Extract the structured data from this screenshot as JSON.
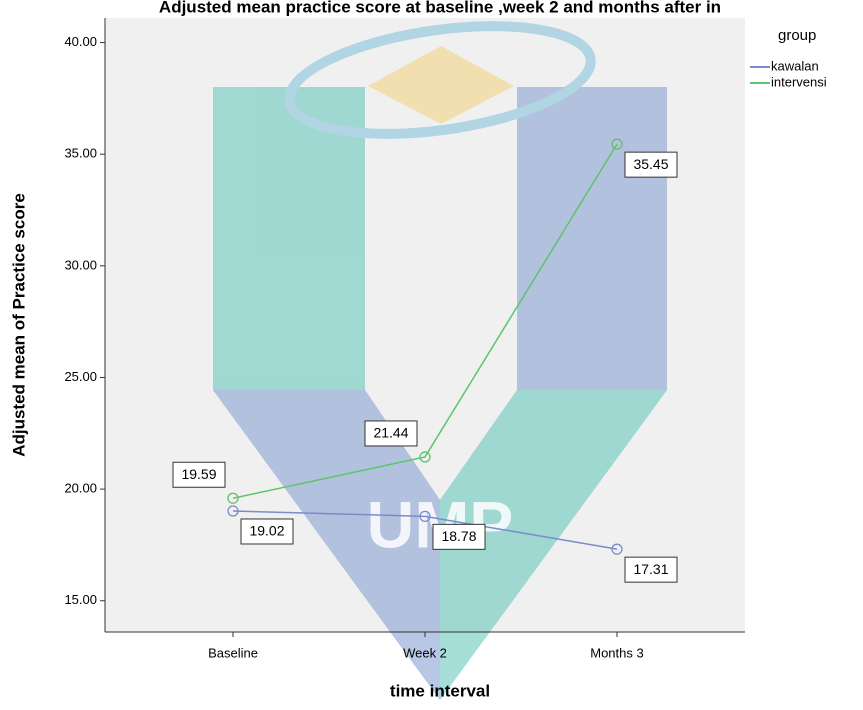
{
  "chart_data": {
    "type": "line",
    "title": "Adjusted  mean practice  score at baseline ,week 2 and months  after in",
    "x_label": "time interval",
    "y_label": "Adjusted mean of  Practice score",
    "legend_title": "group",
    "watermark": "UMP",
    "categories": [
      "Baseline",
      "Week 2",
      "Months 3"
    ],
    "series": [
      {
        "name": "kawalan",
        "color": "#7a8bcc",
        "values": [
          19.02,
          18.78,
          17.31
        ]
      },
      {
        "name": "intervensi",
        "color": "#5cc46a",
        "values": [
          19.59,
          21.44,
          35.45
        ]
      }
    ],
    "ylim": [
      13.6,
      41.1
    ],
    "yticks": [
      {
        "value": 15,
        "label": "15.00"
      },
      {
        "value": 20,
        "label": "20.00"
      },
      {
        "value": 25,
        "label": "25.00"
      },
      {
        "value": 30,
        "label": "30.00"
      },
      {
        "value": 35,
        "label": "35.00"
      },
      {
        "value": 40,
        "label": "40.00"
      }
    ],
    "legend": "right"
  }
}
